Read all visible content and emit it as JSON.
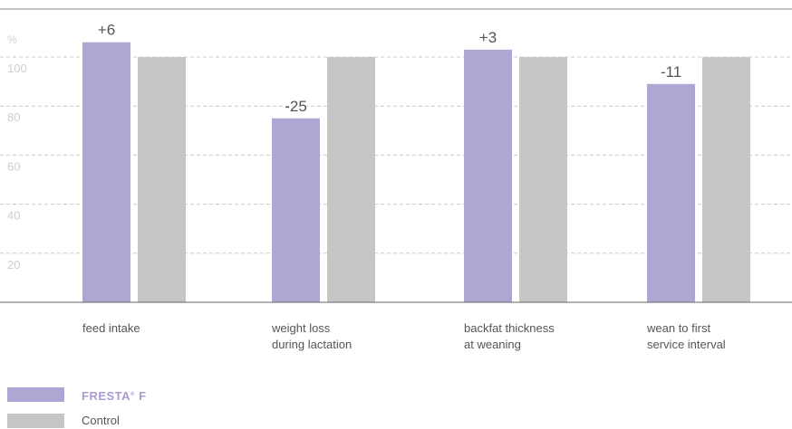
{
  "chart_data": {
    "type": "bar",
    "ylabel": "%",
    "ylim": [
      0,
      100
    ],
    "yticks": [
      "20",
      "40",
      "60",
      "80",
      "100"
    ],
    "categories": [
      [
        "feed intake"
      ],
      [
        "weight loss",
        "during lactation"
      ],
      [
        "backfat thickness",
        "at weaning"
      ],
      [
        "wean to first",
        "service interval"
      ]
    ],
    "series": [
      {
        "name": "FRESTA F",
        "values": [
          106,
          75,
          103,
          89
        ],
        "color": "#b0a6d3"
      },
      {
        "name": "Control",
        "values": [
          100,
          100,
          100,
          100
        ],
        "color": "#c6c6c4"
      }
    ],
    "annotations": [
      "+6",
      "-25",
      "+3",
      "-11"
    ],
    "grid": true,
    "legend_position": "bottom-left"
  },
  "legend": {
    "brand_main": "FRESTA",
    "brand_mark": "®",
    "brand_suffix": "F",
    "control": "Control"
  }
}
